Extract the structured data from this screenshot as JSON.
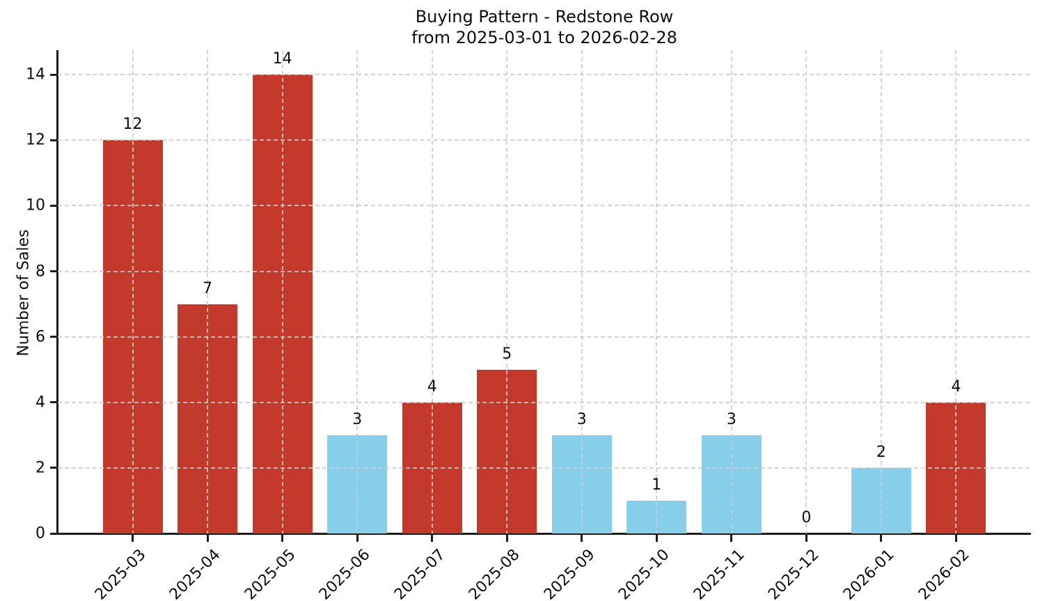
{
  "chart_data": {
    "type": "bar",
    "title": "Buying Pattern - Redstone Row",
    "subtitle": "from 2025-03-01 to 2026-02-28",
    "ylabel": "Number of Sales",
    "xlabel": "",
    "categories": [
      "2025-03",
      "2025-04",
      "2025-05",
      "2025-06",
      "2025-07",
      "2025-08",
      "2025-09",
      "2025-10",
      "2025-11",
      "2025-12",
      "2026-01",
      "2026-02"
    ],
    "values": [
      12,
      7,
      14,
      3,
      4,
      5,
      3,
      1,
      3,
      0,
      2,
      4
    ],
    "value_labels": [
      "12",
      "7",
      "14",
      "3",
      "4",
      "5",
      "3",
      "1",
      "3",
      "0",
      "2",
      "4"
    ],
    "bar_colors": [
      "#c3392b",
      "#c3392b",
      "#c3392b",
      "#87ceeb",
      "#c3392b",
      "#c3392b",
      "#87ceeb",
      "#87ceeb",
      "#87ceeb",
      "#87ceeb",
      "#87ceeb",
      "#c3392b"
    ],
    "yticks": [
      0,
      2,
      4,
      6,
      8,
      10,
      12,
      14
    ],
    "ylim": [
      0,
      14.75
    ],
    "grid": {
      "axes": "both",
      "style": "dashed"
    },
    "legend": null,
    "xtick_rotation_deg": 45,
    "colors": {
      "high_bar": "#c3392b",
      "low_bar": "#87ceeb",
      "axis": "#1c1c1c",
      "grid": "#cdcdcd",
      "text": "#0e0e0e",
      "background": "#ffffff"
    }
  }
}
